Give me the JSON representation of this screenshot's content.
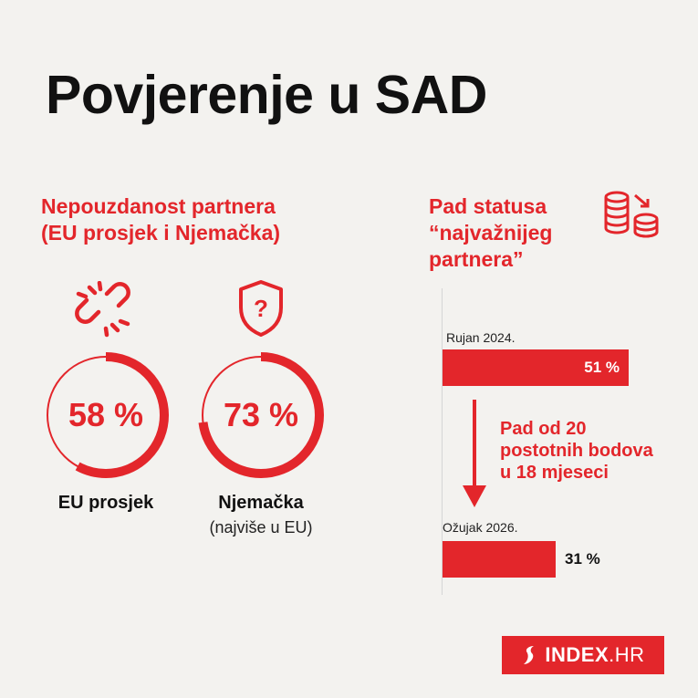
{
  "title": "Povjerenje u SAD",
  "left_section": {
    "heading_line1": "Nepouzdanost partnera",
    "heading_line2": "(EU prosjek i Njemačka)",
    "icon_left": "broken-link-icon",
    "icon_right": "shield-question-icon",
    "items": [
      {
        "value_text": "58 %",
        "value": 58,
        "label": "EU prosjek",
        "note": ""
      },
      {
        "value_text": "73 %",
        "value": 73,
        "label": "Njemačka",
        "note": "(najviše u EU)"
      }
    ]
  },
  "right_section": {
    "heading_line1": "Pad statusa",
    "heading_line2": "“najvažnijeg",
    "heading_line3": "partnera”",
    "icon": "coins-down-icon",
    "bars": [
      {
        "label": "Rujan 2024.",
        "value": 51,
        "value_text": "51 %"
      },
      {
        "label": "Ožujak 2026.",
        "value": 31,
        "value_text": "31 %"
      }
    ],
    "drop_line1": "Pad od 20",
    "drop_line2": "postotnih bodova",
    "drop_line3": "u 18 mjeseci"
  },
  "logo": {
    "bold": "INDEX",
    "thin": ".HR"
  },
  "colors": {
    "accent": "#e3262b",
    "background": "#f3f2ef",
    "text": "#111111"
  }
}
